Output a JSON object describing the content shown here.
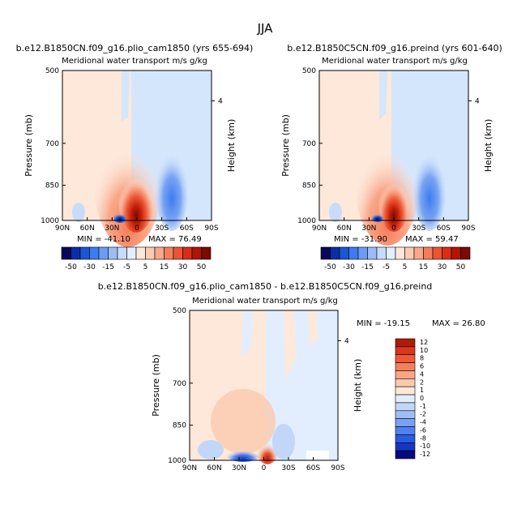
{
  "figure": {
    "season": "JJA"
  },
  "cbar_main": {
    "colors": [
      "#08085c",
      "#0b2ea6",
      "#1a55d6",
      "#3c7cf0",
      "#6a9cf5",
      "#9dbcf6",
      "#c8dcfa",
      "#e3effd",
      "#fde8da",
      "#fbcbb2",
      "#f9a88a",
      "#f47e5c",
      "#ec5533",
      "#d92e14",
      "#b21505",
      "#7a0a02"
    ],
    "labels": [
      "-50",
      "-30",
      "-15",
      "-5",
      "5",
      "15",
      "30",
      "50"
    ],
    "label_bounds": [
      1,
      3,
      5,
      7,
      9,
      11,
      13,
      15
    ]
  },
  "cbar_diff": {
    "colors": [
      "#0a0a80",
      "#1538c2",
      "#2a5ae0",
      "#5080ef",
      "#7aa0f3",
      "#a0bdf5",
      "#c2d7f8",
      "#e2eefd",
      "#fde8da",
      "#fbc9ae",
      "#f9a586",
      "#f57f5d",
      "#ee5a38",
      "#d9361a",
      "#b01a08"
    ],
    "labels": [
      "12",
      "10",
      "8",
      "6",
      "4",
      "2",
      "1",
      "0",
      "-1",
      "-2",
      "-4",
      "-6",
      "-8",
      "-10",
      "-12"
    ]
  },
  "chart_data": [
    {
      "type": "heatmap",
      "title": "b.e12.B1850CN.f09_g16.plio_cam1850 (yrs 655-694)",
      "subtitle": "Meridional water transport m/s g/kg",
      "ylabel": "Pressure (mb)",
      "y2label": "Height (km)",
      "x_ticks": [
        "90N",
        "60N",
        "30N",
        "0",
        "30S",
        "60S",
        "90S"
      ],
      "y_ticks": [
        "500",
        "700",
        "850",
        "1000"
      ],
      "y2_ticks": [
        "4"
      ],
      "xlim": [
        90,
        -90
      ],
      "ylim": [
        1000,
        500
      ],
      "min_label": "MIN = -41.10",
      "max_label": "MAX =  76.49",
      "min": -41.1,
      "max": 76.49
    },
    {
      "type": "heatmap",
      "title": "b.e12.B1850C5CN.f09_g16.preind (yrs 601-640)",
      "subtitle": "Meridional water transport m/s g/kg",
      "ylabel": "Pressure (mb)",
      "y2label": "Height (km)",
      "x_ticks": [
        "90N",
        "60N",
        "30N",
        "0",
        "30S",
        "60S",
        "90S"
      ],
      "y_ticks": [
        "500",
        "700",
        "850",
        "1000"
      ],
      "y2_ticks": [
        "4"
      ],
      "xlim": [
        90,
        -90
      ],
      "ylim": [
        1000,
        500
      ],
      "min_label": "MIN = -31.90",
      "max_label": "MAX =  59.47",
      "min": -31.9,
      "max": 59.47
    },
    {
      "type": "heatmap",
      "title": "b.e12.B1850CN.f09_g16.plio_cam1850 - b.e12.B1850C5CN.f09_g16.preind",
      "subtitle": "Meridional water transport m/s g/kg",
      "ylabel": "Pressure (mb)",
      "y2label": "Height (km)",
      "x_ticks": [
        "90N",
        "60N",
        "30N",
        "0",
        "30S",
        "60S",
        "90S"
      ],
      "y_ticks": [
        "500",
        "700",
        "850",
        "1000"
      ],
      "y2_ticks": [
        "4"
      ],
      "xlim": [
        90,
        -90
      ],
      "ylim": [
        1000,
        500
      ],
      "min_label": "MIN = -19.15",
      "max_label": "MAX =  26.80",
      "min": -19.15,
      "max": 26.8
    }
  ]
}
